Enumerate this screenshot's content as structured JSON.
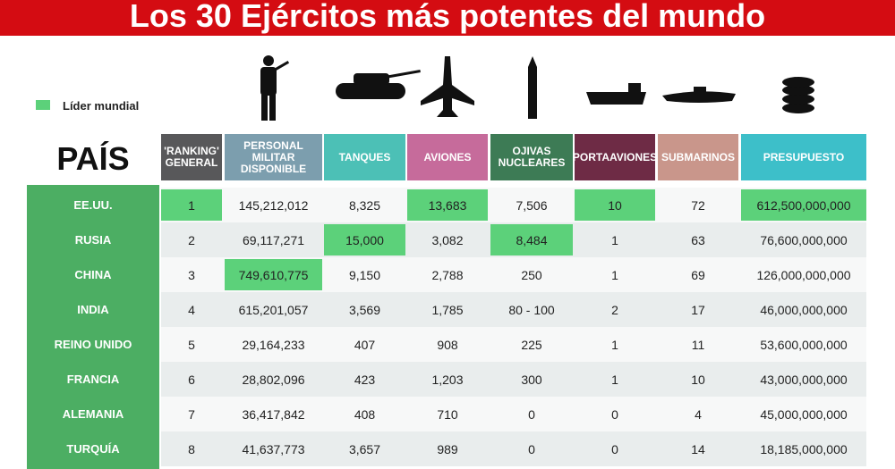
{
  "title": "Los 30 Ejércitos más potentes del mundo",
  "legend": {
    "label": "Líder mundial",
    "color": "#5cd17a"
  },
  "table": {
    "country_header": "PAÍS",
    "columns": [
      {
        "label": "'RANKING' GENERAL",
        "color": "#58585a"
      },
      {
        "label": "PERSONAL MILITAR DISPONIBLE",
        "color": "#7c9eae"
      },
      {
        "label": "TANQUES",
        "color": "#4cc0b6"
      },
      {
        "label": "AVIONES",
        "color": "#c66b9b"
      },
      {
        "label": "OJIVAS NUCLEARES",
        "color": "#3d7b55"
      },
      {
        "label": "PORTAAVIONES",
        "color": "#6e2b45"
      },
      {
        "label": "SUBMARINOS",
        "color": "#c9968b"
      },
      {
        "label": "PRESUPUESTO",
        "color": "#3dbfc9"
      }
    ],
    "rows": [
      {
        "country": "EE.UU.",
        "cells": [
          "1",
          "145,212,012",
          "8,325",
          "13,683",
          "7,506",
          "10",
          "72",
          "612,500,000,000"
        ],
        "leaders": [
          0,
          3,
          5,
          7
        ]
      },
      {
        "country": "RUSIA",
        "cells": [
          "2",
          "69,117,271",
          "15,000",
          "3,082",
          "8,484",
          "1",
          "63",
          "76,600,000,000"
        ],
        "leaders": [
          2,
          4
        ]
      },
      {
        "country": "CHINA",
        "cells": [
          "3",
          "749,610,775",
          "9,150",
          "2,788",
          "250",
          "1",
          "69",
          "126,000,000,000"
        ],
        "leaders": [
          1
        ]
      },
      {
        "country": "INDIA",
        "cells": [
          "4",
          "615,201,057",
          "3,569",
          "1,785",
          "80 - 100",
          "2",
          "17",
          "46,000,000,000"
        ],
        "leaders": []
      },
      {
        "country": "REINO UNIDO",
        "cells": [
          "5",
          "29,164,233",
          "407",
          "908",
          "225",
          "1",
          "11",
          "53,600,000,000"
        ],
        "leaders": []
      },
      {
        "country": "FRANCIA",
        "cells": [
          "6",
          "28,802,096",
          "423",
          "1,203",
          "300",
          "1",
          "10",
          "43,000,000,000"
        ],
        "leaders": []
      },
      {
        "country": "ALEMANIA",
        "cells": [
          "7",
          "36,417,842",
          "408",
          "710",
          "0",
          "0",
          "4",
          "45,000,000,000"
        ],
        "leaders": []
      },
      {
        "country": "TURQUÍA",
        "cells": [
          "8",
          "41,637,773",
          "3,657",
          "989",
          "0",
          "0",
          "14",
          "18,185,000,000"
        ],
        "leaders": []
      }
    ]
  }
}
